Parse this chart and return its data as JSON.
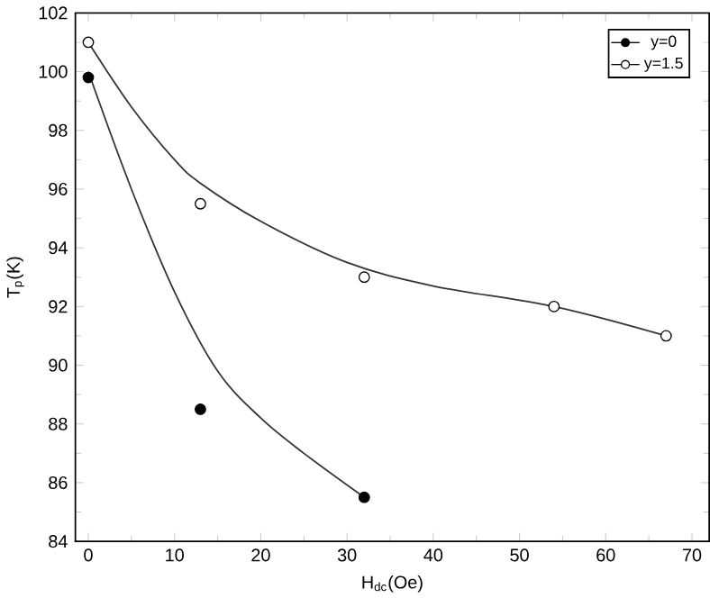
{
  "chart_data": {
    "type": "scatter",
    "xlabel": "H$_{dc}$(Oe)",
    "ylabel": "T$_{p}$(K)",
    "xlim": [
      -1.5,
      72
    ],
    "ylim": [
      84,
      102
    ],
    "xticks": [
      0,
      10,
      20,
      30,
      40,
      50,
      60,
      70
    ],
    "yticks": [
      84,
      86,
      88,
      90,
      92,
      94,
      96,
      98,
      100,
      102
    ],
    "grid": false,
    "legend": "top right",
    "series": [
      {
        "name": "y=0",
        "color": "#000000",
        "marker": "circle",
        "x": [
          0,
          13,
          32
        ],
        "values": [
          99.8,
          88.5,
          85.5
        ]
      },
      {
        "name": "y=1.5",
        "color": "#ffffff",
        "marker": "circle",
        "x": [
          0,
          13,
          32,
          54,
          67
        ],
        "values": [
          101,
          95.5,
          93,
          92,
          91
        ]
      },
      {
        "type": "line",
        "color": "#333333",
        "marker": "none",
        "x": [
          0,
          5,
          10,
          15,
          20,
          25,
          32
        ],
        "values": [
          100,
          96,
          92.5,
          89.8,
          88.2,
          87,
          85.5
        ]
      },
      {
        "type": "line",
        "color": "#333333",
        "marker": "none",
        "x": [
          0,
          5,
          10,
          13,
          20,
          30,
          40,
          54,
          67
        ],
        "values": [
          101,
          98.8,
          97,
          96.2,
          94.9,
          93.5,
          92.7,
          92,
          91
        ]
      }
    ]
  }
}
